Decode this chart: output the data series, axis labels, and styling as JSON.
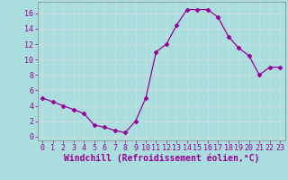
{
  "x": [
    0,
    1,
    2,
    3,
    4,
    5,
    6,
    7,
    8,
    9,
    10,
    11,
    12,
    13,
    14,
    15,
    16,
    17,
    18,
    19,
    20,
    21,
    22,
    23
  ],
  "y": [
    5,
    4.5,
    4,
    3.5,
    3,
    1.5,
    1.2,
    0.8,
    0.5,
    2,
    5,
    11,
    12,
    14.5,
    16.5,
    16.5,
    16.5,
    15.5,
    13,
    11.5,
    10.5,
    8,
    9,
    9
  ],
  "line_color": "#990099",
  "marker": "D",
  "marker_size": 2.5,
  "bg_color": "#aadddd",
  "grid_color": "#bbcccc",
  "xlabel": "Windchill (Refroidissement éolien,°C)",
  "xlabel_color": "#990099",
  "xlabel_fontsize": 7,
  "tick_color": "#990099",
  "tick_fontsize": 6,
  "ylim": [
    -0.5,
    17.5
  ],
  "xlim": [
    -0.5,
    23.5
  ],
  "yticks": [
    0,
    2,
    4,
    6,
    8,
    10,
    12,
    14,
    16
  ],
  "xticks": [
    0,
    1,
    2,
    3,
    4,
    5,
    6,
    7,
    8,
    9,
    10,
    11,
    12,
    13,
    14,
    15,
    16,
    17,
    18,
    19,
    20,
    21,
    22,
    23
  ]
}
